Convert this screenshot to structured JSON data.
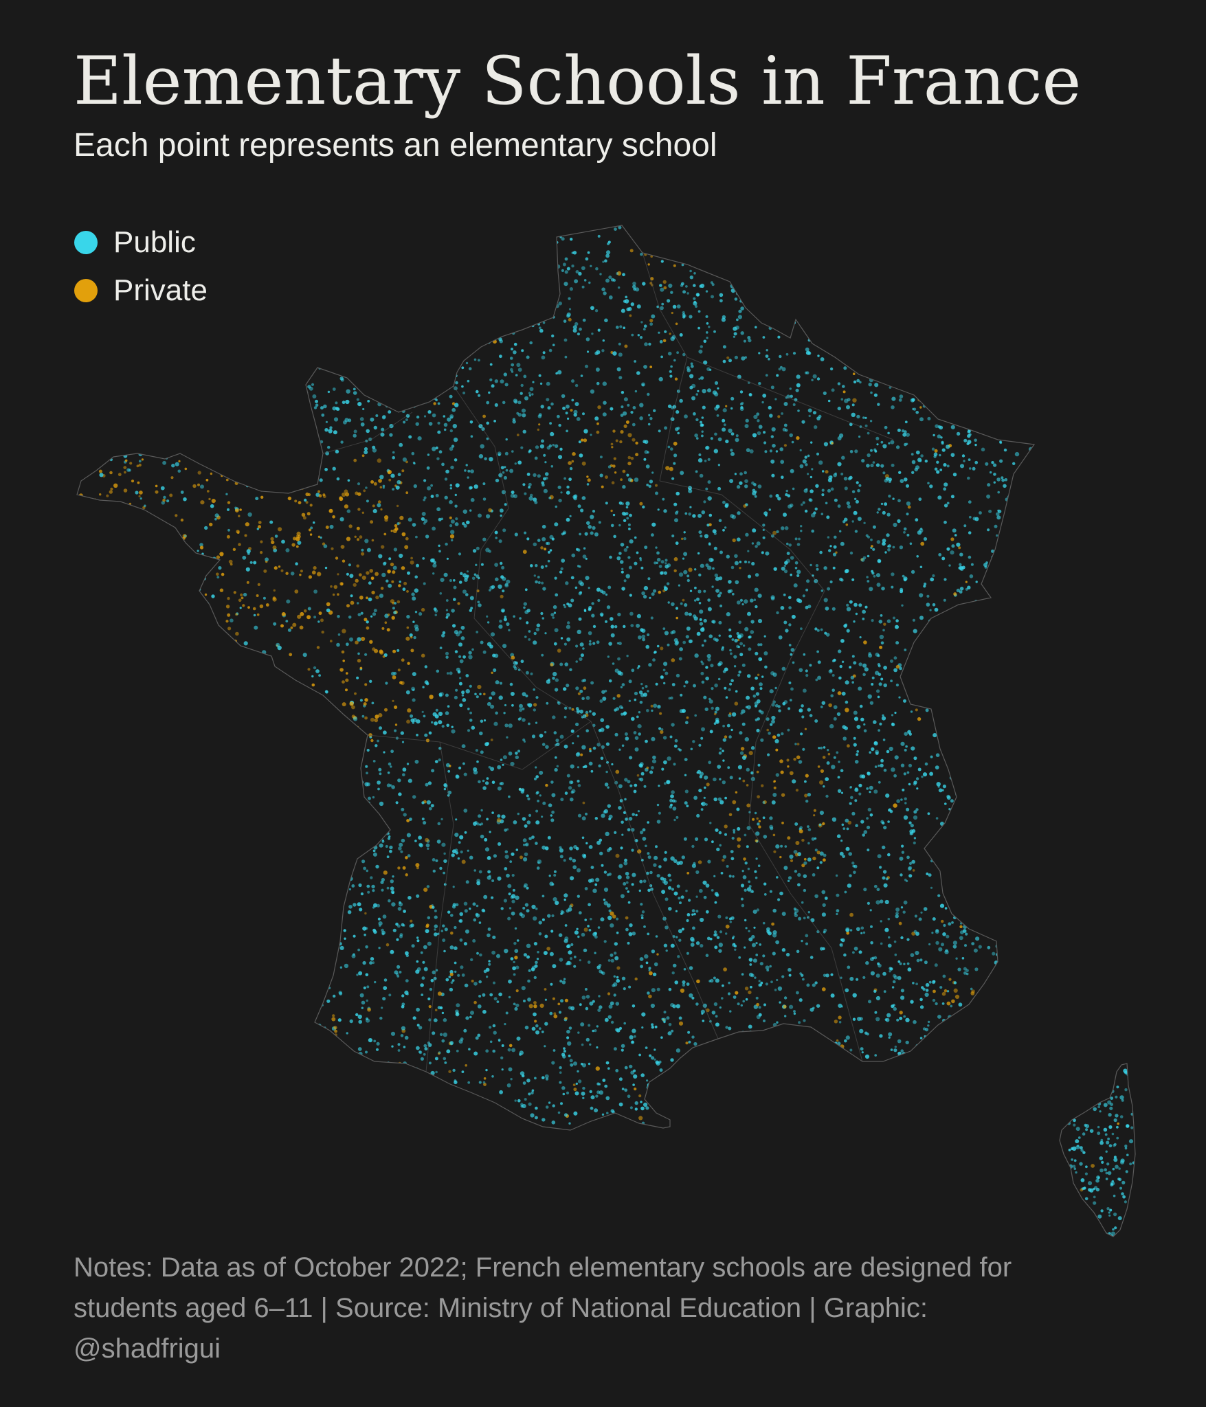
{
  "title": "Elementary Schools in France",
  "subtitle": "Each point represents an elementary school",
  "legend": [
    {
      "label": "Public",
      "color": "#39d6ea"
    },
    {
      "label": "Private",
      "color": "#e2a00c"
    }
  ],
  "map": {
    "region": "France",
    "background_color": "#1a1a1a",
    "boundary_color": "#5a5a5a",
    "public_color": "#39d6ea",
    "private_color": "#e2a00c"
  },
  "notes": "Notes: Data as of October 2022; French elementary schools are designed for students aged 6–11 | Source: Ministry of National Education | Graphic: @shadfrigui"
}
